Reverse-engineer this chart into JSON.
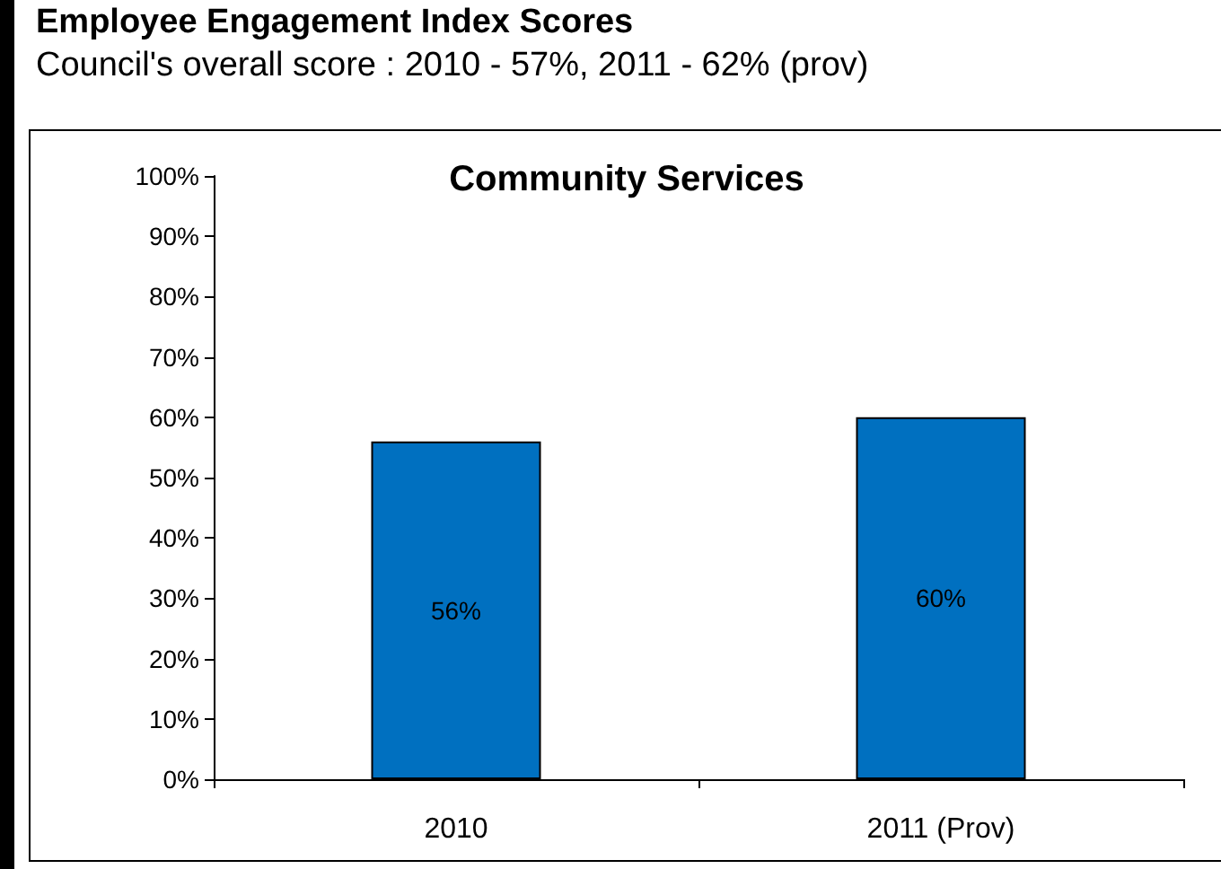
{
  "chart_data": {
    "type": "bar",
    "title": "Employee Engagement Index Scores",
    "subtitle": "Council's overall score : 2010 - 57%, 2011 - 62% (prov)",
    "annotations": [
      "Community Services"
    ],
    "categories": [
      "2010",
      "2011 (Prov)"
    ],
    "values": [
      56,
      60
    ],
    "color": "#0070c0",
    "value_labels": [
      "56%",
      "60%"
    ],
    "ylim": [
      0,
      100
    ],
    "yticks": [
      {
        "value": 0,
        "label": "0%"
      },
      {
        "value": 10,
        "label": "10%"
      },
      {
        "value": 20,
        "label": "20%"
      },
      {
        "value": 30,
        "label": "30%"
      },
      {
        "value": 40,
        "label": "40%"
      },
      {
        "value": 50,
        "label": "50%"
      },
      {
        "value": 60,
        "label": "60%"
      },
      {
        "value": 70,
        "label": "70%"
      },
      {
        "value": 80,
        "label": "80%"
      },
      {
        "value": 90,
        "label": "90%"
      },
      {
        "value": 100,
        "label": "100%"
      }
    ],
    "grid": false
  }
}
